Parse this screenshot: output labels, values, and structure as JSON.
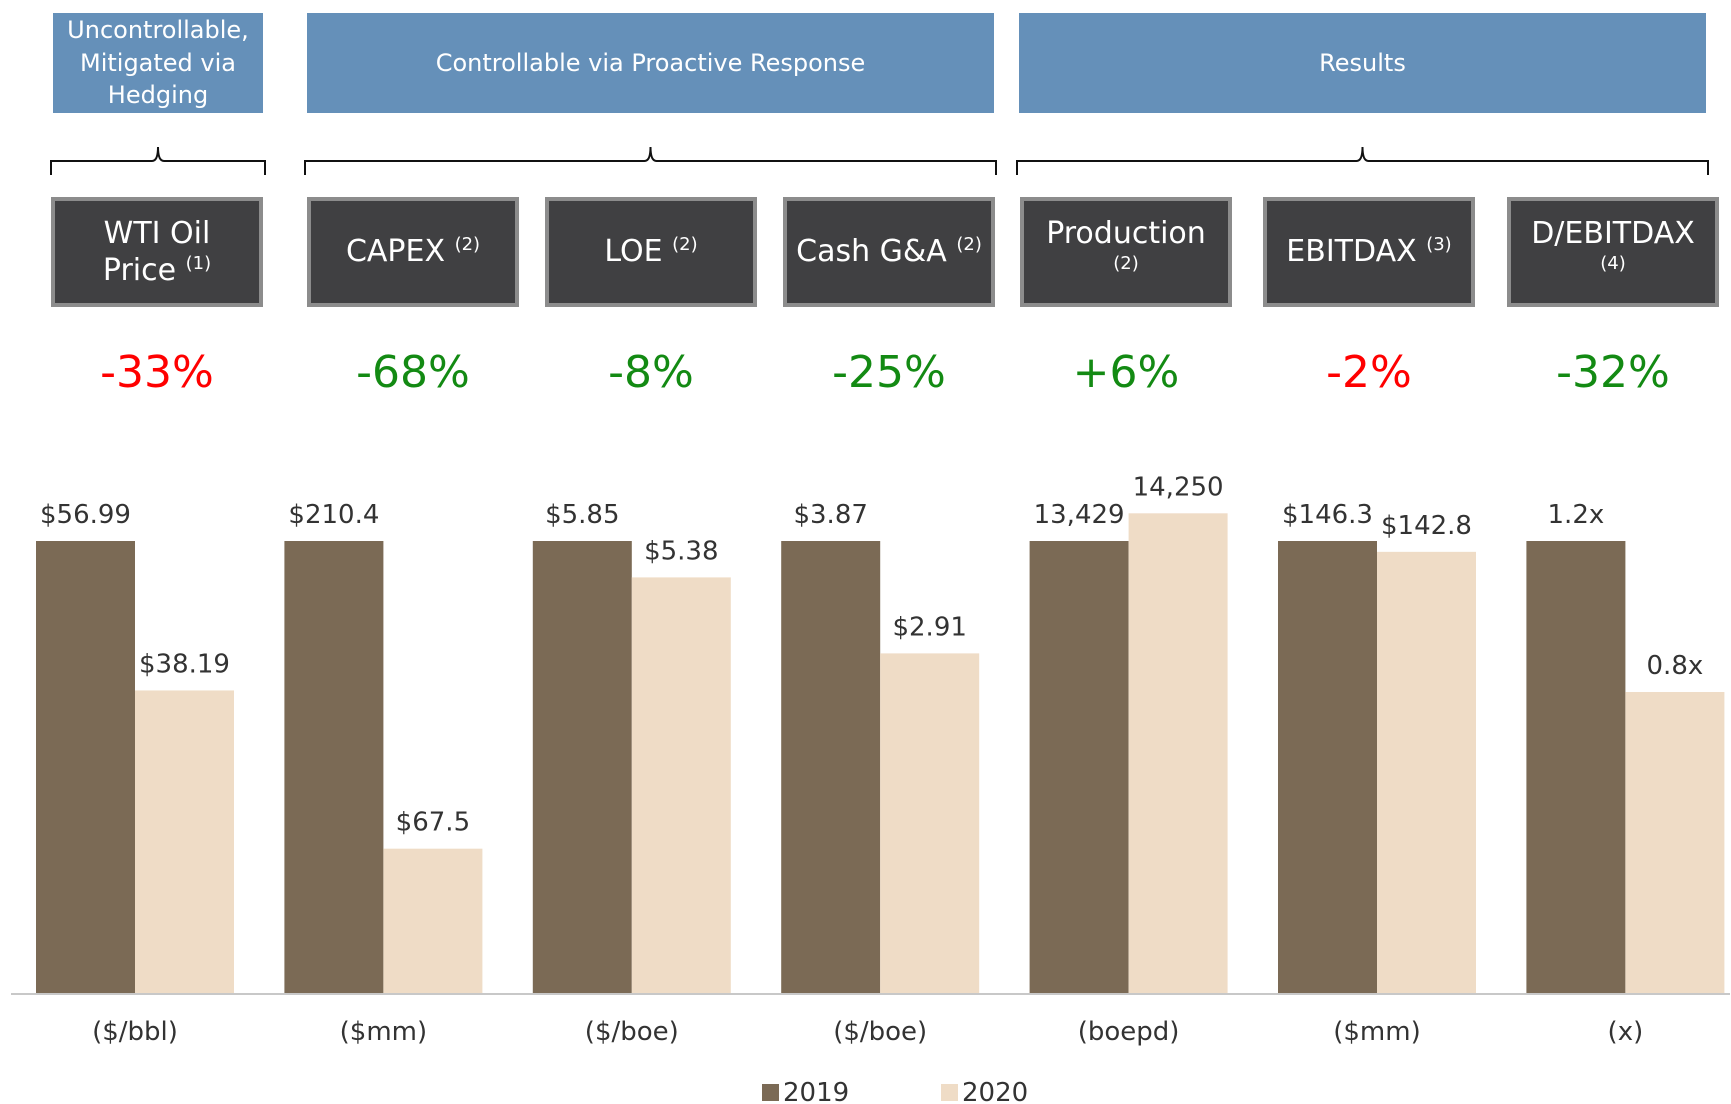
{
  "headers": [
    "Uncontrollable, Mitigated via Hedging",
    "Controllable via Proactive Response",
    "Results"
  ],
  "chart_data": {
    "type": "bar",
    "categories": [
      "WTI Oil Price",
      "CAPEX",
      "LOE",
      "Cash G&A",
      "Production",
      "EBITDAX",
      "D/EBITDAX"
    ],
    "notes": [
      "(1)",
      "(2)",
      "(2)",
      "(2)",
      "(2)",
      "(3)",
      "(4)"
    ],
    "changes": [
      "-33%",
      "-68%",
      "-8%",
      "-25%",
      "+6%",
      "-2%",
      "-32%"
    ],
    "change_colors": [
      "#ff0000",
      "#138a13",
      "#138a13",
      "#138a13",
      "#138a13",
      "#ff0000",
      "#138a13"
    ],
    "units": [
      "($/bbl)",
      "($mm)",
      "($/boe)",
      "($/boe)",
      "(boepd)",
      "($mm)",
      "(x)"
    ],
    "series": [
      {
        "name": "2019",
        "color": "#7b6a55",
        "values": [
          56.99,
          210.4,
          5.85,
          3.87,
          13429,
          146.3,
          1.2
        ],
        "value_labels": [
          "$56.99",
          "$210.4",
          "$5.85",
          "$3.87",
          "13,429",
          "$146.3",
          "1.2x"
        ]
      },
      {
        "name": "2020",
        "color": "#efdcc6",
        "values": [
          38.19,
          67.5,
          5.38,
          2.91,
          14250,
          142.8,
          0.8
        ],
        "value_labels": [
          "$38.19",
          "$67.5",
          "$5.38",
          "$2.91",
          "14,250",
          "$142.8",
          "0.8x"
        ]
      }
    ]
  }
}
